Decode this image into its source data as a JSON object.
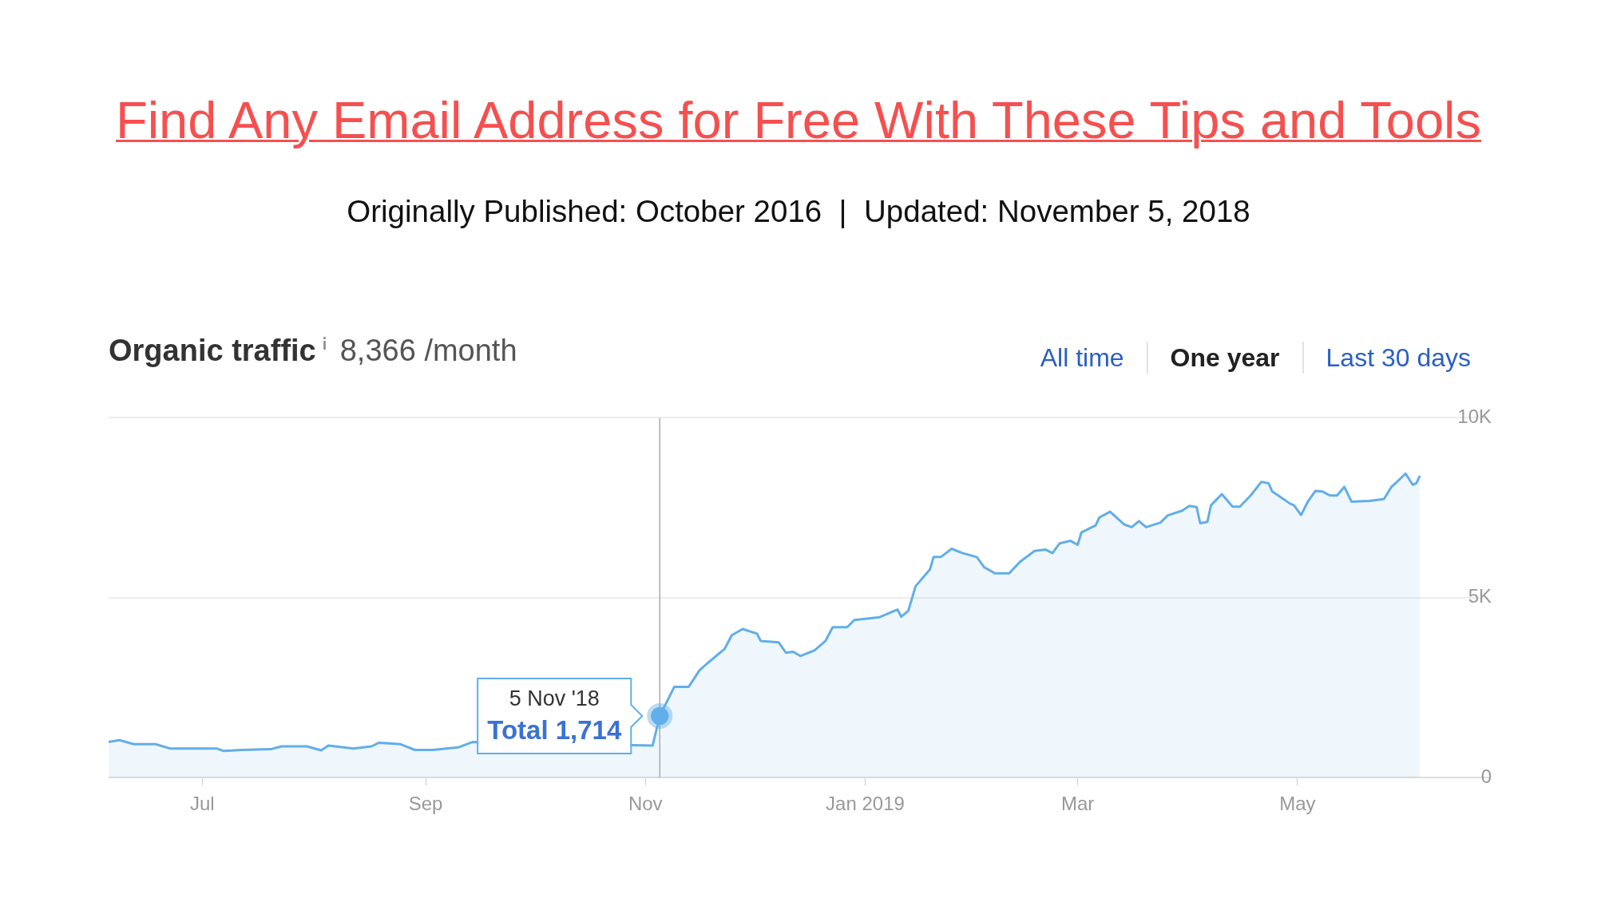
{
  "chart_data": {
    "type": "area",
    "title": "Find Any Email Address for Free With These Tips and Tools",
    "subtitle": "Originally Published: October 2016  |  Updated: November 5, 2018",
    "x": [
      "2018-06-05",
      "2018-06-08",
      "2018-06-12",
      "2018-06-18",
      "2018-06-22",
      "2018-06-28",
      "2018-07-05",
      "2018-07-07",
      "2018-07-12",
      "2018-07-20",
      "2018-07-23",
      "2018-07-30",
      "2018-08-03",
      "2018-08-05",
      "2018-08-12",
      "2018-08-17",
      "2018-08-19",
      "2018-08-25",
      "2018-08-29",
      "2018-09-03",
      "2018-09-10",
      "2018-09-14",
      "2018-10-05",
      "2018-10-29",
      "2018-11-03",
      "2018-11-05",
      "2018-11-09",
      "2018-11-13",
      "2018-11-16",
      "2018-11-18",
      "2018-11-23",
      "2018-11-25",
      "2018-11-28",
      "2018-12-02",
      "2018-12-03",
      "2018-12-08",
      "2018-12-10",
      "2018-12-12",
      "2018-12-14",
      "2018-12-18",
      "2018-12-21",
      "2018-12-23",
      "2018-12-27",
      "2018-12-29",
      "2019-01-05",
      "2019-01-10",
      "2019-01-11",
      "2019-01-13",
      "2019-01-15",
      "2019-01-19",
      "2019-01-20",
      "2019-01-22",
      "2019-01-25",
      "2019-01-28",
      "2019-02-01",
      "2019-02-03",
      "2019-02-06",
      "2019-02-10",
      "2019-02-13",
      "2019-02-17",
      "2019-02-20",
      "2019-02-22",
      "2019-02-24",
      "2019-02-27",
      "2019-03-01",
      "2019-03-02",
      "2019-03-06",
      "2019-03-07",
      "2019-03-10",
      "2019-03-14",
      "2019-03-16",
      "2019-03-18",
      "2019-03-20",
      "2019-03-24",
      "2019-03-26",
      "2019-03-30",
      "2019-04-01",
      "2019-04-03",
      "2019-04-04",
      "2019-04-06",
      "2019-04-07",
      "2019-04-10",
      "2019-04-13",
      "2019-04-15",
      "2019-04-18",
      "2019-04-21",
      "2019-04-23",
      "2019-04-24",
      "2019-04-26",
      "2019-04-29",
      "2019-04-30",
      "2019-05-02",
      "2019-05-04",
      "2019-05-06",
      "2019-05-08",
      "2019-05-10",
      "2019-05-12",
      "2019-05-14",
      "2019-05-16",
      "2019-05-21",
      "2019-05-25",
      "2019-05-27",
      "2019-05-28",
      "2019-05-31",
      "2019-06-02",
      "2019-06-03",
      "2019-06-04"
    ],
    "series": [
      {
        "color": "#62aee8",
        "values": [
          990,
          1040,
          930,
          930,
          810,
          810,
          810,
          740,
          770,
          790,
          870,
          870,
          760,
          890,
          810,
          870,
          970,
          930,
          770,
          770,
          840,
          990,
          null,
          null,
          890,
          1714,
          2520,
          2520,
          2980,
          3160,
          3580,
          3960,
          4130,
          4000,
          3800,
          3760,
          3470,
          3500,
          3380,
          3540,
          3800,
          4180,
          4180,
          4380,
          4460,
          4670,
          4470,
          4640,
          5320,
          5790,
          6130,
          6130,
          6360,
          6240,
          6130,
          5850,
          5680,
          5680,
          6000,
          6300,
          6340,
          6240,
          6510,
          6580,
          6470,
          6810,
          7010,
          7230,
          7390,
          7030,
          6960,
          7130,
          6960,
          7090,
          7290,
          7420,
          7550,
          7520,
          7070,
          7110,
          7570,
          7880,
          7530,
          7530,
          7840,
          8220,
          8180,
          7950,
          7820,
          7610,
          7570,
          7300,
          7690,
          7970,
          7950,
          7840,
          7840,
          8080,
          7670,
          7690,
          7740,
          8070,
          8160,
          8450,
          8140,
          8180,
          8390
        ]
      }
    ],
    "xlim": [
      "2018-06-05",
      "2019-06-23"
    ],
    "xticks": [
      {
        "value": "2018-07-01",
        "label": "Jul"
      },
      {
        "value": "2018-09-01",
        "label": "Sep"
      },
      {
        "value": "2018-11-01",
        "label": "Nov"
      },
      {
        "value": "2019-01-01",
        "label": "Jan 2019"
      },
      {
        "value": "2019-03-01",
        "label": "Mar"
      },
      {
        "value": "2019-05-01",
        "label": "May"
      }
    ],
    "ylim": [
      0,
      10000
    ],
    "yticks": [
      {
        "value": 0,
        "label": "0"
      },
      {
        "value": 5000,
        "label": "5K"
      },
      {
        "value": 10000,
        "label": "10K"
      }
    ],
    "grid": "y",
    "legend": false,
    "marker": "none",
    "line_style": "solid",
    "ref_lines": [
      {
        "axis": "x",
        "value": "2018-11-05",
        "color": "#aaaaaa"
      }
    ],
    "annotations": [
      "Organic traffic",
      "8,366 /month",
      "All time",
      "One year",
      "Last 30 days",
      {
        "text": "5 Nov '18",
        "x": "2018-11-05",
        "y": 1714
      },
      {
        "text": "Total 1,714",
        "x": "2018-11-05",
        "y": 1714
      }
    ]
  }
}
